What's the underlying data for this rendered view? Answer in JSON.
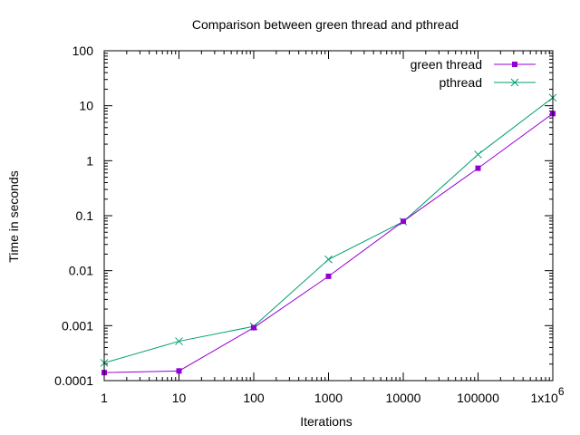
{
  "chart_data": {
    "type": "line",
    "title": "Comparison between green thread and pthread",
    "xlabel": "Iterations",
    "ylabel": "Time in seconds",
    "x_scale": "log",
    "y_scale": "log",
    "xlim": [
      1,
      1000000
    ],
    "ylim": [
      0.0001,
      100
    ],
    "x": [
      1,
      10,
      100,
      1000,
      10000,
      100000,
      1000000
    ],
    "x_tick_labels": [
      "1",
      "10",
      "100",
      "1000",
      "10000",
      "100000",
      "1x10"
    ],
    "x_tick_last_exponent": "6",
    "y_tick_labels": [
      "0.0001",
      "0.001",
      "0.01",
      "0.1",
      "1",
      "10",
      "100"
    ],
    "grid": false,
    "legend_position": "top-right",
    "series": [
      {
        "name": "green thread",
        "color": "#9400d3",
        "marker": "filled-square",
        "values": [
          0.00014,
          0.00015,
          0.00092,
          0.0079,
          0.079,
          0.73,
          7.2
        ]
      },
      {
        "name": "pthread",
        "color": "#009e73",
        "marker": "cross",
        "values": [
          0.00021,
          0.00052,
          0.00097,
          0.016,
          0.078,
          1.3,
          14
        ]
      }
    ]
  }
}
